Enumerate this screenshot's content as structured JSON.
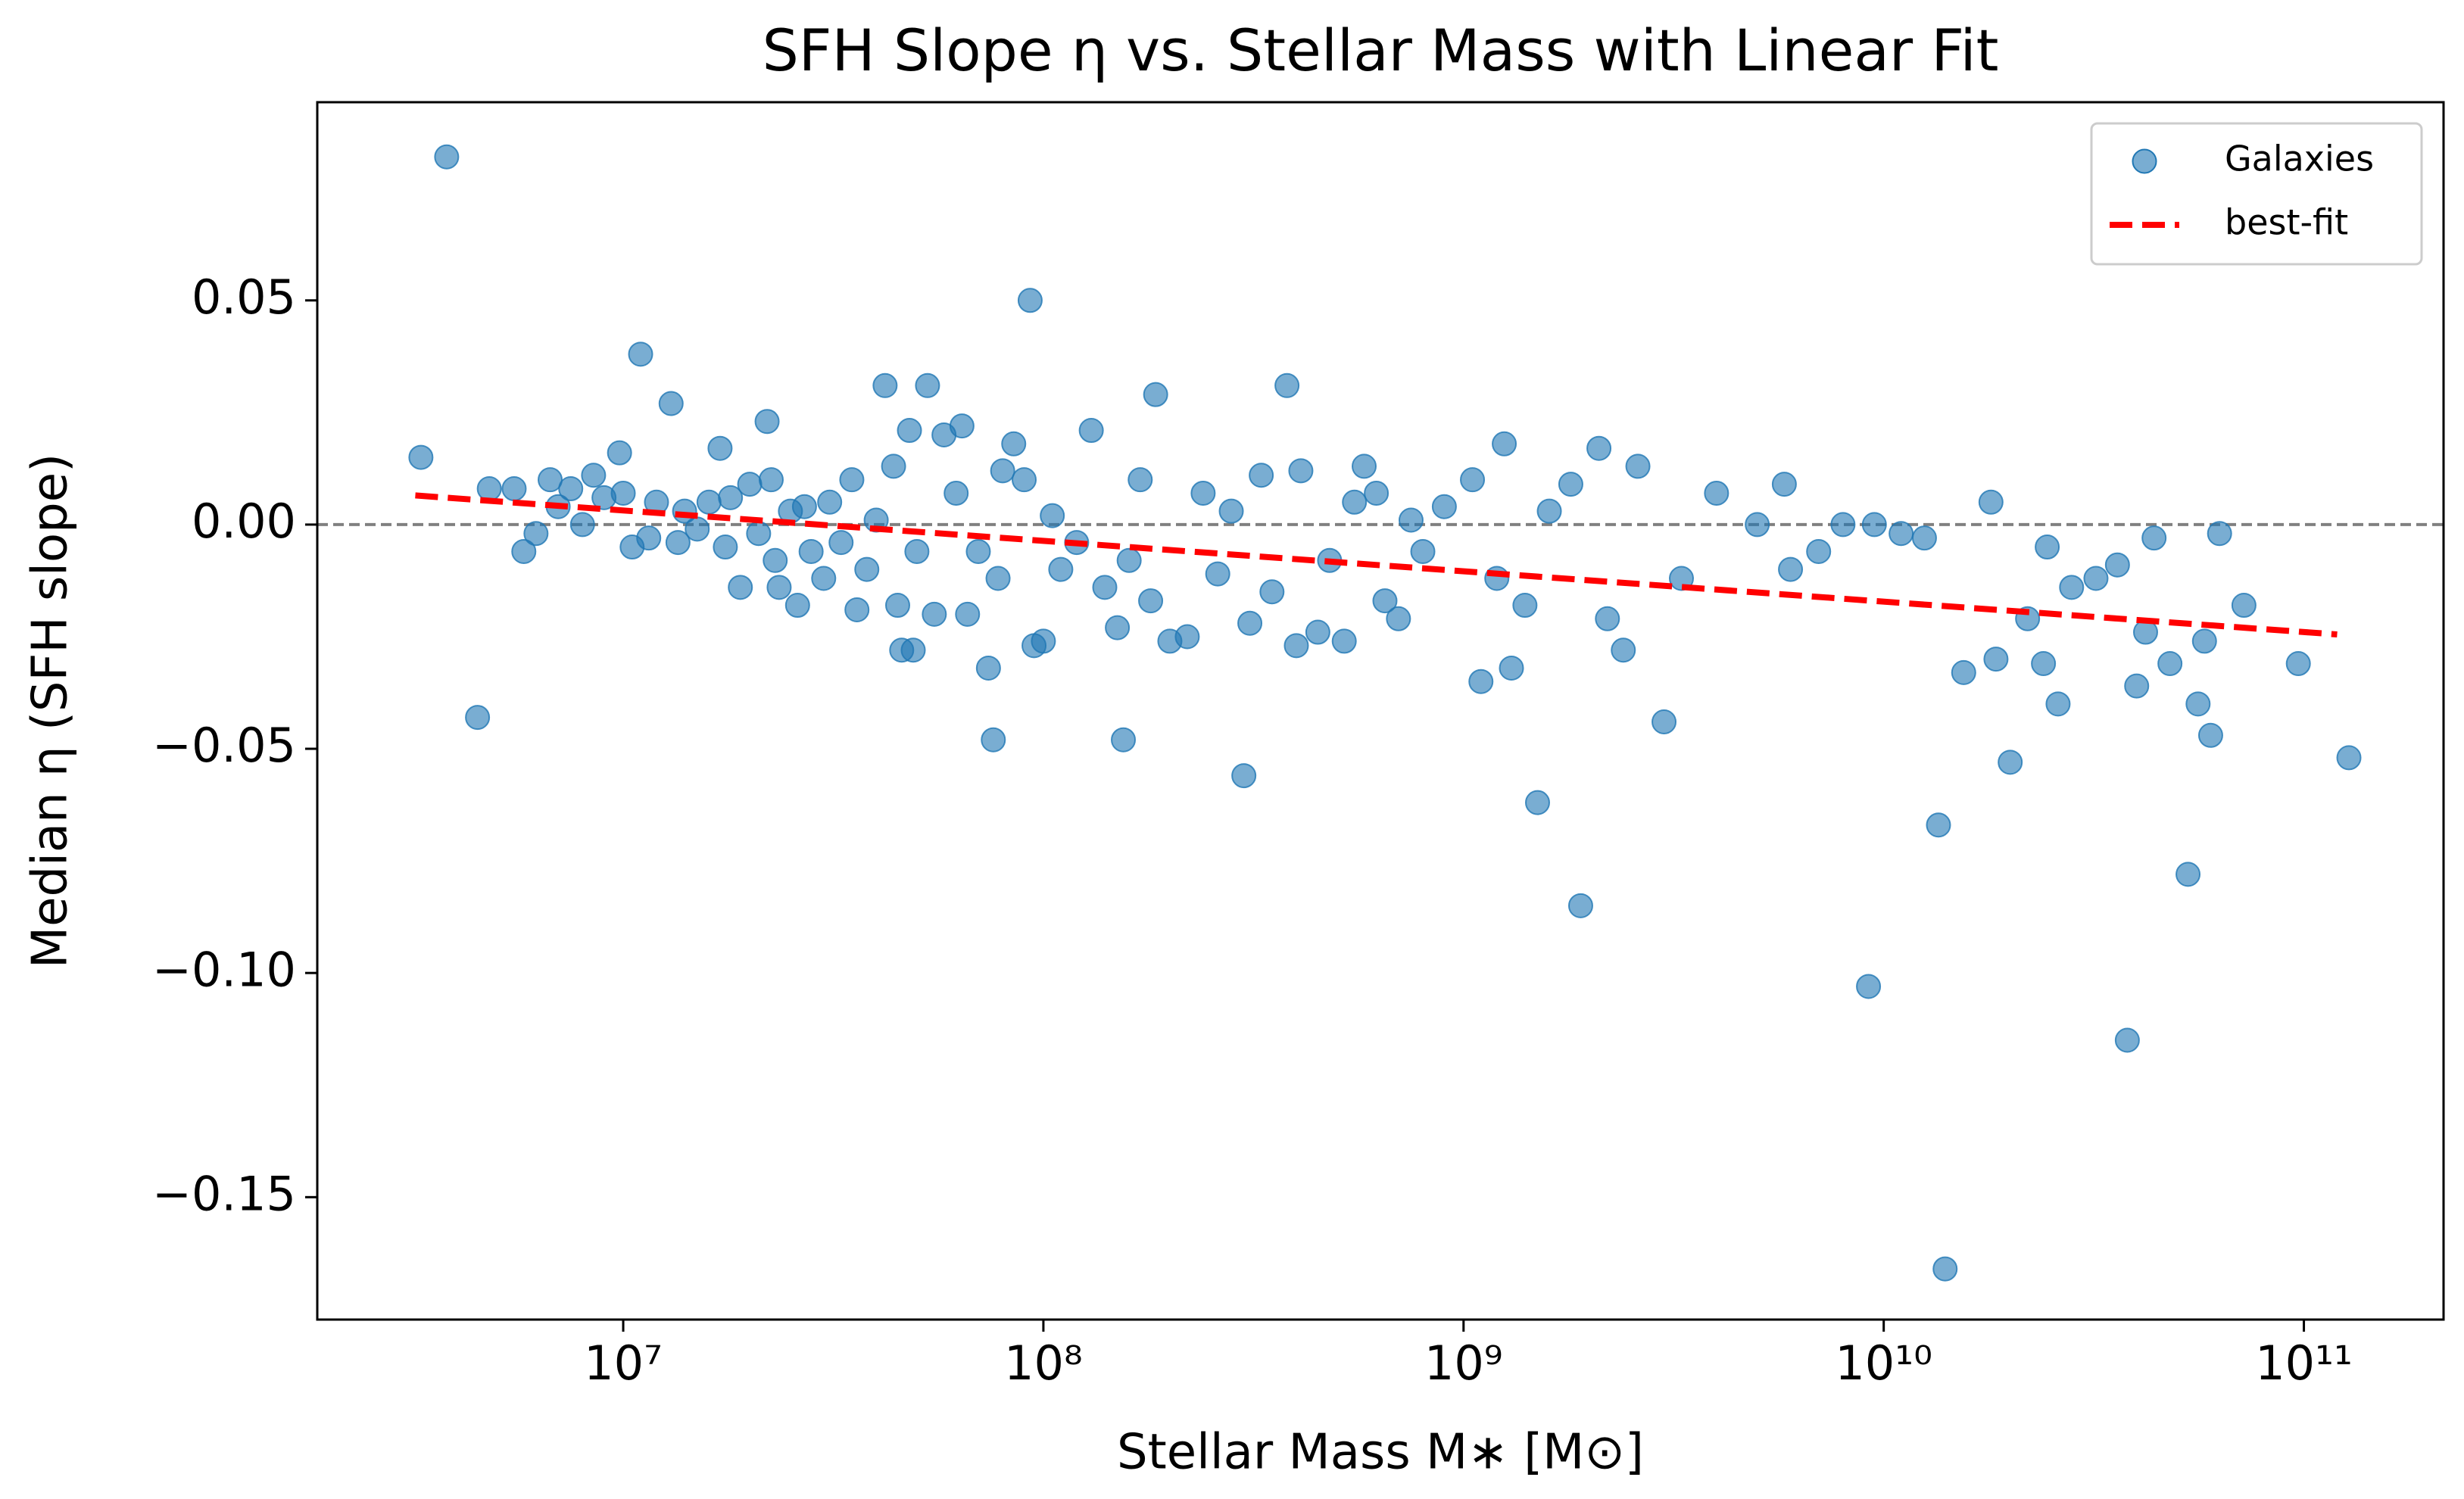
{
  "chart_data": {
    "type": "scatter",
    "title": "SFH Slope η vs. Stellar Mass with Linear Fit",
    "xlabel": "Stellar Mass M∗ [M⊙]",
    "ylabel": "Median η (SFH slope)",
    "xscale": "log",
    "xlim": [
      1870000,
      215000000000
    ],
    "ylim": [
      -0.1773,
      0.0942
    ],
    "xticks": [
      {
        "value": 10000000.0,
        "label": "10⁷"
      },
      {
        "value": 100000000.0,
        "label": "10⁸"
      },
      {
        "value": 1000000000.0,
        "label": "10⁹"
      },
      {
        "value": 10000000000.0,
        "label": "10¹⁰"
      },
      {
        "value": 100000000000.0,
        "label": "10¹¹"
      }
    ],
    "yticks": [
      0.05,
      {
        "value": 0,
        "label": "0.00"
      },
      {
        "value": -0.05,
        "label": "−0.05"
      },
      {
        "value": -0.1,
        "label": "−0.10"
      },
      {
        "value": -0.15,
        "label": "−0.15"
      }
    ],
    "reference_line": {
      "value": 0,
      "color": "#808080"
    },
    "legend": "upper right",
    "series": [
      {
        "name": "Galaxies",
        "type": "scatter",
        "color": "#1f77b4",
        "x": [
          3300000.0,
          3800000.0,
          4500000.0,
          4800000.0,
          5500000.0,
          5800000.0,
          6200000.0,
          6700000.0,
          7000000.0,
          7500000.0,
          8000000.0,
          8500000.0,
          9000000.0,
          9800000.0,
          10000000.0,
          10500000.0,
          11000000.0,
          11500000.0,
          12000000.0,
          13000000.0,
          13500000.0,
          14000000.0,
          15000000.0,
          16000000.0,
          17000000.0,
          17500000.0,
          18000000.0,
          19000000.0,
          20000000.0,
          21000000.0,
          22000000.0,
          22500000.0,
          23000000.0,
          23500000.0,
          25000000.0,
          26000000.0,
          27000000.0,
          28000000.0,
          30000000.0,
          31000000.0,
          33000000.0,
          35000000.0,
          36000000.0,
          38000000.0,
          40000000.0,
          42000000.0,
          44000000.0,
          45000000.0,
          46000000.0,
          48000000.0,
          49000000.0,
          50000000.0,
          53000000.0,
          55000000.0,
          58000000.0,
          62000000.0,
          64000000.0,
          66000000.0,
          70000000.0,
          74000000.0,
          76000000.0,
          78000000.0,
          80000000.0,
          85000000.0,
          90000000.0,
          93000000.0,
          95000000.0,
          100000000.0,
          105000000.0,
          110000000.0,
          120000000.0,
          130000000.0,
          140000000.0,
          150000000.0,
          155000000.0,
          160000000.0,
          170000000.0,
          180000000.0,
          185000000.0,
          200000000.0,
          220000000.0,
          240000000.0,
          260000000.0,
          280000000.0,
          300000000.0,
          310000000.0,
          330000000.0,
          350000000.0,
          380000000.0,
          400000000.0,
          410000000.0,
          450000000.0,
          480000000.0,
          520000000.0,
          550000000.0,
          580000000.0,
          620000000.0,
          650000000.0,
          700000000.0,
          750000000.0,
          800000000.0,
          900000000.0,
          1050000000.0,
          1100000000.0,
          1200000000.0,
          1250000000.0,
          1300000000.0,
          1400000000.0,
          1500000000.0,
          1600000000.0,
          1800000000.0,
          1900000000.0,
          2100000000.0,
          2200000000.0,
          2400000000.0,
          2600000000.0,
          3000000000.0,
          3300000000.0,
          4000000000.0,
          5000000000.0,
          5800000000.0,
          6000000000.0,
          7000000000.0,
          8000000000.0,
          9200000000.0,
          9500000000.0,
          11000000000.0,
          12500000000.0,
          13500000000.0,
          14000000000.0,
          15500000000.0,
          18000000000.0,
          18500000000.0,
          20000000000.0,
          22000000000.0,
          24000000000.0,
          24500000000.0,
          26000000000.0,
          28000000000.0,
          32000000000.0,
          36000000000.0,
          38000000000.0,
          40000000000.0,
          42000000000.0,
          44000000000.0,
          48000000000.0,
          53000000000.0,
          56000000000.0,
          58000000000.0,
          60000000000.0,
          63000000000.0,
          72000000000.0,
          97000000000.0,
          128000000000.0
        ],
        "values": [
          0.015,
          0.082,
          -0.043,
          0.008,
          0.008,
          -0.006,
          -0.002,
          0.01,
          0.004,
          0.008,
          0,
          0.011,
          0.006,
          0.016,
          0.007,
          -0.005,
          0.038,
          -0.003,
          0.005,
          0.027,
          -0.004,
          0.003,
          -0.001,
          0.005,
          0.017,
          -0.005,
          0.006,
          -0.014,
          0.009,
          -0.002,
          0.023,
          0.01,
          -0.008,
          -0.014,
          0.003,
          -0.018,
          0.004,
          -0.006,
          -0.012,
          0.005,
          -0.004,
          0.01,
          -0.019,
          -0.01,
          0.001,
          0.031,
          0.013,
          -0.018,
          -0.028,
          0.021,
          -0.028,
          -0.006,
          0.031,
          -0.02,
          0.02,
          0.007,
          0.022,
          -0.02,
          -0.006,
          -0.032,
          -0.048,
          -0.012,
          0.012,
          0.018,
          0.01,
          0.05,
          -0.027,
          -0.026,
          0.002,
          -0.01,
          -0.004,
          0.021,
          -0.014,
          -0.023,
          -0.048,
          -0.008,
          0.01,
          -0.017,
          0.029,
          -0.026,
          -0.025,
          0.007,
          -0.011,
          0.003,
          -0.056,
          -0.022,
          0.011,
          -0.015,
          0.031,
          -0.027,
          0.012,
          -0.024,
          -0.008,
          -0.026,
          0.005,
          0.013,
          0.007,
          -0.017,
          -0.021,
          0.001,
          -0.006,
          0.004,
          0.01,
          -0.035,
          -0.012,
          0.018,
          -0.032,
          -0.018,
          -0.062,
          0.003,
          0.009,
          -0.085,
          0.017,
          -0.021,
          -0.028,
          0.013,
          -0.044,
          -0.012,
          0.007,
          0,
          0.009,
          -0.01,
          -0.006,
          0,
          -0.103,
          0,
          -0.002,
          -0.003,
          -0.067,
          -0.166,
          -0.033,
          0.005,
          -0.03,
          -0.053,
          -0.021,
          -0.031,
          -0.005,
          -0.04,
          -0.014,
          -0.012,
          -0.009,
          -0.115,
          -0.036,
          -0.024,
          -0.003,
          -0.031,
          -0.078,
          -0.04,
          -0.026,
          -0.047,
          -0.002,
          -0.018,
          -0.031,
          -0.052
        ]
      },
      {
        "name": "best-fit",
        "type": "line",
        "color": "#ff0000",
        "dash": "dashed",
        "x": [
          3200000.0,
          120000000000.0
        ],
        "values": [
          0.0065,
          -0.0245
        ]
      }
    ]
  }
}
